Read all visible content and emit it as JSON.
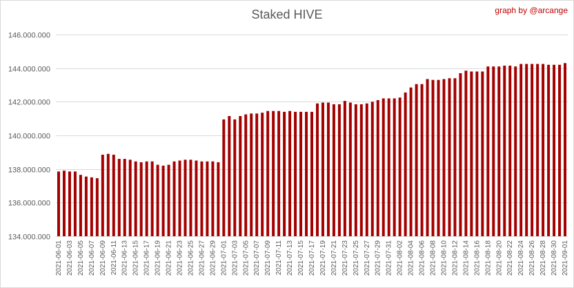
{
  "title": "Staked HIVE",
  "credit": "graph by @arcange",
  "colors": {
    "bar": "#a50000",
    "grid": "#d9d9d9",
    "text": "#595959",
    "credit": "#c00000"
  },
  "chart_data": {
    "type": "bar",
    "title": "Staked HIVE",
    "grid": true,
    "legend": "none",
    "ylim": [
      134000000,
      146000000
    ],
    "y_ticks": [
      134000000,
      136000000,
      138000000,
      140000000,
      142000000,
      144000000,
      146000000
    ],
    "y_tick_labels": [
      "134.000.000",
      "136.000.000",
      "138.000.000",
      "140.000.000",
      "142.000.000",
      "144.000.000",
      "146.000.000"
    ],
    "categories": [
      "2021-06-01",
      "2021-06-02",
      "2021-06-03",
      "2021-06-04",
      "2021-06-05",
      "2021-06-06",
      "2021-06-07",
      "2021-06-08",
      "2021-06-09",
      "2021-06-10",
      "2021-06-11",
      "2021-06-12",
      "2021-06-13",
      "2021-06-14",
      "2021-06-15",
      "2021-06-16",
      "2021-06-17",
      "2021-06-18",
      "2021-06-19",
      "2021-06-20",
      "2021-06-21",
      "2021-06-22",
      "2021-06-23",
      "2021-06-24",
      "2021-06-25",
      "2021-06-26",
      "2021-06-27",
      "2021-06-28",
      "2021-06-29",
      "2021-06-30",
      "2021-07-01",
      "2021-07-02",
      "2021-07-03",
      "2021-07-04",
      "2021-07-05",
      "2021-07-06",
      "2021-07-07",
      "2021-07-08",
      "2021-07-09",
      "2021-07-10",
      "2021-07-11",
      "2021-07-12",
      "2021-07-13",
      "2021-07-14",
      "2021-07-15",
      "2021-07-16",
      "2021-07-17",
      "2021-07-18",
      "2021-07-19",
      "2021-07-20",
      "2021-07-21",
      "2021-07-22",
      "2021-07-23",
      "2021-07-24",
      "2021-07-25",
      "2021-07-26",
      "2021-07-27",
      "2021-07-28",
      "2021-07-29",
      "2021-07-30",
      "2021-07-31",
      "2021-08-01",
      "2021-08-02",
      "2021-08-03",
      "2021-08-04",
      "2021-08-05",
      "2021-08-06",
      "2021-08-07",
      "2021-08-08",
      "2021-08-09",
      "2021-08-10",
      "2021-08-11",
      "2021-08-12",
      "2021-08-13",
      "2021-08-14",
      "2021-08-15",
      "2021-08-16",
      "2021-08-17",
      "2021-08-18",
      "2021-08-19",
      "2021-08-20",
      "2021-08-21",
      "2021-08-22",
      "2021-08-23",
      "2021-08-24",
      "2021-08-25",
      "2021-08-26",
      "2021-08-27",
      "2021-08-28",
      "2021-08-29",
      "2021-08-30",
      "2021-08-31",
      "2021-09-01"
    ],
    "x_tick_labels": [
      "2021-06-01",
      "2021-06-03",
      "2021-06-05",
      "2021-06-07",
      "2021-06-09",
      "2021-06-11",
      "2021-06-13",
      "2021-06-15",
      "2021-06-17",
      "2021-06-19",
      "2021-06-21",
      "2021-06-23",
      "2021-06-25",
      "2021-06-27",
      "2021-06-29",
      "2021-07-01",
      "2021-07-03",
      "2021-07-05",
      "2021-07-07",
      "2021-07-09",
      "2021-07-11",
      "2021-07-13",
      "2021-07-15",
      "2021-07-17",
      "2021-07-19",
      "2021-07-21",
      "2021-07-23",
      "2021-07-25",
      "2021-07-27",
      "2021-07-29",
      "2021-07-31",
      "2021-08-02",
      "2021-08-04",
      "2021-08-06",
      "2021-08-08",
      "2021-08-10",
      "2021-08-12",
      "2021-08-14",
      "2021-08-16",
      "2021-08-18",
      "2021-08-20",
      "2021-08-22",
      "2021-08-24",
      "2021-08-26",
      "2021-08-28",
      "2021-08-30",
      "2021-09-01"
    ],
    "values": [
      137850000,
      137900000,
      137850000,
      137850000,
      137650000,
      137550000,
      137500000,
      137450000,
      138850000,
      138900000,
      138850000,
      138600000,
      138600000,
      138550000,
      138450000,
      138400000,
      138450000,
      138450000,
      138250000,
      138200000,
      138250000,
      138450000,
      138500000,
      138550000,
      138550000,
      138500000,
      138450000,
      138450000,
      138450000,
      138400000,
      140950000,
      141150000,
      140950000,
      141150000,
      141250000,
      141300000,
      141300000,
      141350000,
      141450000,
      141450000,
      141450000,
      141400000,
      141450000,
      141400000,
      141400000,
      141400000,
      141400000,
      141900000,
      141950000,
      141950000,
      141850000,
      141850000,
      142050000,
      141950000,
      141850000,
      141850000,
      141900000,
      142000000,
      142100000,
      142200000,
      142200000,
      142200000,
      142250000,
      142550000,
      142850000,
      143050000,
      143050000,
      143350000,
      143300000,
      143300000,
      143350000,
      143400000,
      143400000,
      143700000,
      143850000,
      143800000,
      143800000,
      143800000,
      144100000,
      144100000,
      144100000,
      144150000,
      144150000,
      144100000,
      144250000,
      144250000,
      144250000,
      144250000,
      144250000,
      144200000,
      144200000,
      144200000,
      144300000
    ]
  }
}
